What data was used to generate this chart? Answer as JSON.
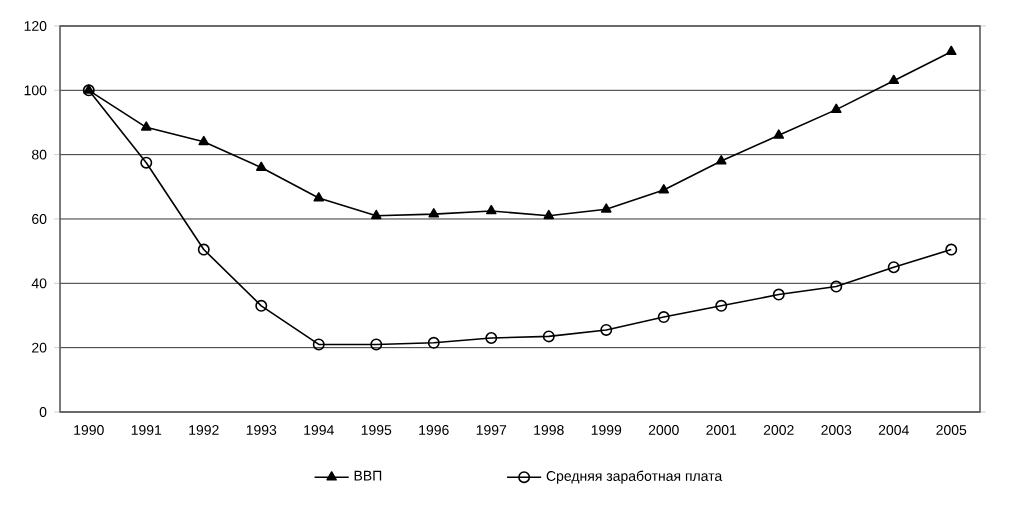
{
  "chart_data": {
    "type": "line",
    "categories": [
      "1990",
      "1991",
      "1992",
      "1993",
      "1994",
      "1995",
      "1996",
      "1997",
      "1998",
      "1999",
      "2000",
      "2001",
      "2002",
      "2003",
      "2004",
      "2005"
    ],
    "series": [
      {
        "name": "ВВП",
        "color": "#000000",
        "marker": "triangle",
        "values": [
          100,
          88.5,
          84,
          76,
          66.5,
          61,
          61.5,
          62.5,
          61,
          63,
          69,
          78,
          86,
          94,
          103,
          112
        ]
      },
      {
        "name": "Средняя заработная плата",
        "color": "#000000",
        "marker": "circle",
        "values": [
          100,
          77.5,
          50.5,
          33,
          21,
          21,
          21.5,
          23,
          23.5,
          25.5,
          29.5,
          33,
          36.5,
          39,
          45,
          50.5
        ]
      }
    ],
    "ylim": [
      0,
      120
    ],
    "yticks": [
      0,
      20,
      40,
      60,
      80,
      100,
      120
    ],
    "grid": "y",
    "legend": "bottom",
    "line_style": "solid"
  }
}
